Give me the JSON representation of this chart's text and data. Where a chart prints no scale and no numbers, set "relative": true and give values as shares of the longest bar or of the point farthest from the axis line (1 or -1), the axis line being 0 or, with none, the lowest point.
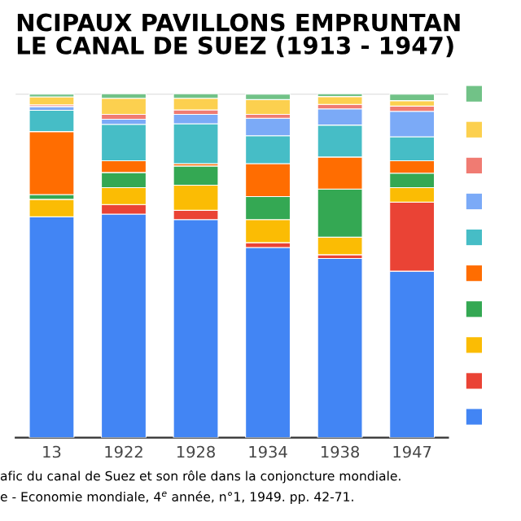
{
  "chart_data": {
    "type": "bar",
    "title": "NCIPAUX PAVILLONS EMPRUNTAN\nLE CANAL DE SUEZ (1913 - 1947)",
    "categories": [
      "13",
      "1922",
      "1928",
      "1934",
      "1938",
      "1947"
    ],
    "stacked": true,
    "relative": true,
    "grid": "y",
    "series": [
      {
        "color": "#4285f4",
        "values": [
          0.642,
          0.65,
          0.634,
          0.553,
          0.521,
          0.484
        ]
      },
      {
        "color": "#ea4335",
        "values": [
          0,
          0.028,
          0.027,
          0.014,
          0.011,
          0.201
        ]
      },
      {
        "color": "#fbbc04",
        "values": [
          0.051,
          0.049,
          0.073,
          0.067,
          0.051,
          0.042
        ]
      },
      {
        "color": "#34a853",
        "values": [
          0.014,
          0.044,
          0.056,
          0.067,
          0.14,
          0.042
        ]
      },
      {
        "color": "#ff6d01",
        "values": [
          0.183,
          0.034,
          0.007,
          0.096,
          0.093,
          0.036
        ]
      },
      {
        "color": "#46bdc6",
        "values": [
          0.062,
          0.106,
          0.116,
          0.081,
          0.093,
          0.07
        ]
      },
      {
        "color": "#7baaf7",
        "values": [
          0.011,
          0.015,
          0.027,
          0.051,
          0.047,
          0.074
        ]
      },
      {
        "color": "#f07b72",
        "values": [
          0.005,
          0.014,
          0.013,
          0.011,
          0.013,
          0.015
        ]
      },
      {
        "color": "#fcd04f",
        "values": [
          0.023,
          0.047,
          0.034,
          0.043,
          0.023,
          0.016
        ]
      },
      {
        "color": "#71c287",
        "values": [
          0.008,
          0.013,
          0.013,
          0.016,
          0.008,
          0.019
        ]
      }
    ],
    "annotations": [
      "afic du canal de Suez et son rôle dans la conjoncture mondiale.",
      "e - Economie mondiale, 4$^{e}$ année, n°1, 1949. pp. 42-71."
    ]
  }
}
